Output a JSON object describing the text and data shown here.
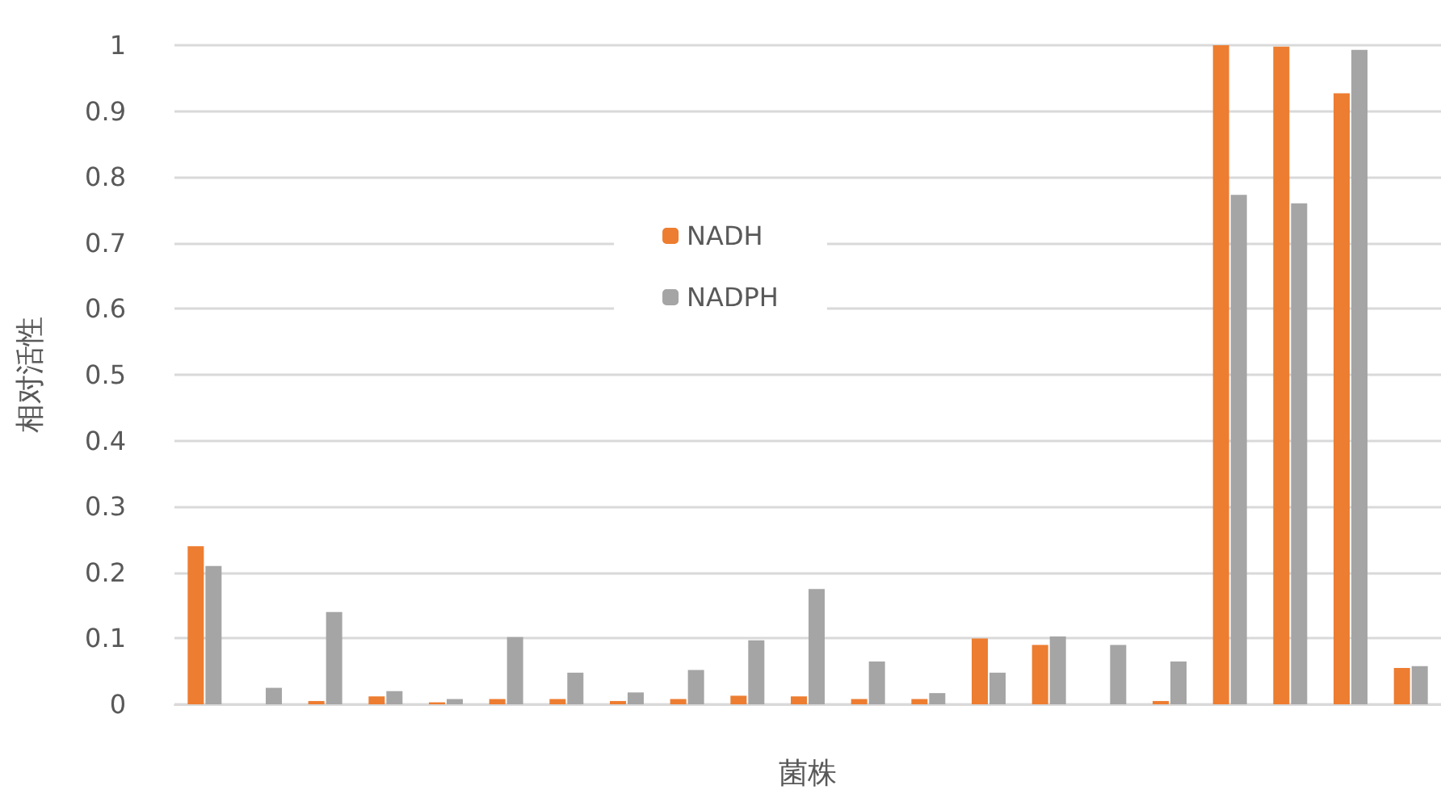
{
  "chart_data": {
    "type": "bar",
    "xlabel": "菌株",
    "ylabel": "相对活性",
    "categories": [
      null,
      null,
      null,
      null,
      null,
      null,
      null,
      null,
      null,
      null,
      null,
      null,
      null,
      null,
      null,
      null,
      null,
      null,
      null,
      null,
      null
    ],
    "series": [
      {
        "name": "NADH",
        "color": "#ed7d31",
        "values": [
          0.24,
          0,
          0.005,
          0.012,
          0.003,
          0.008,
          0.008,
          0.005,
          0.008,
          0.013,
          0.012,
          0.008,
          0.008,
          0.1,
          0.09,
          0,
          0.005,
          1.0,
          0.998,
          0.927,
          0.055
        ]
      },
      {
        "name": "NADPH",
        "color": "#a5a5a5",
        "values": [
          0.21,
          0.025,
          0.14,
          0.02,
          0.008,
          0.102,
          0.048,
          0.018,
          0.052,
          0.097,
          0.175,
          0.065,
          0.017,
          0.048,
          0.103,
          0.09,
          0.065,
          0.773,
          0.76,
          0.993,
          0.058
        ]
      }
    ],
    "ylim": [
      0,
      1
    ],
    "yticks": [
      0,
      0.1,
      0.2,
      0.3,
      0.4,
      0.5,
      0.6,
      0.7,
      0.8,
      0.9,
      1
    ],
    "grid": "y",
    "legend": "top center"
  }
}
